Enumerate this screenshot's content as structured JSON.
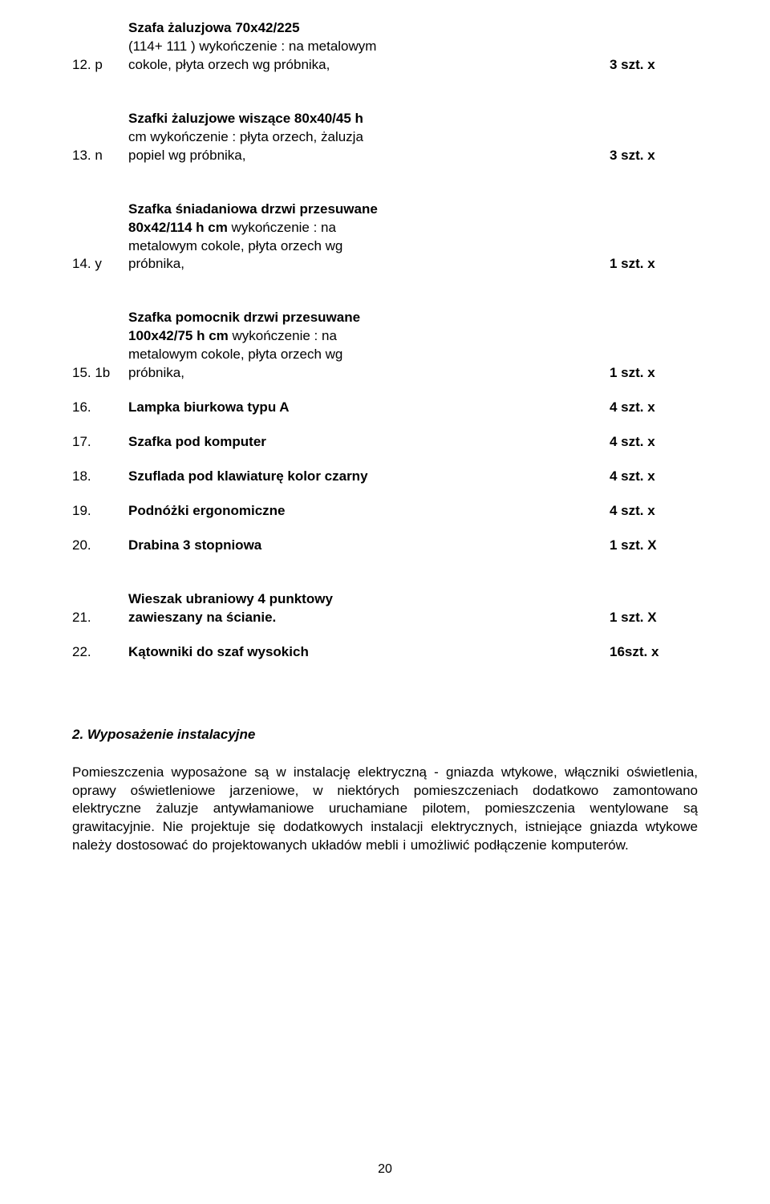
{
  "items": [
    {
      "num": "12. p",
      "desc_lines": [
        {
          "text": "Szafa żaluzjowa  70x42/225",
          "bold": true
        },
        {
          "text": "(114+ 111 ) wykończenie : na metalowym",
          "bold": false
        },
        {
          "text": "cokole, płyta orzech wg próbnika,",
          "bold": false
        }
      ],
      "qty": "3 szt. x",
      "gap": false
    },
    {
      "num": "13. n",
      "desc_lines": [
        {
          "text": "Szafki żaluzjowe wiszące 80x40/45 h",
          "bold": true
        },
        {
          "text": "cm  wykończenie : płyta orzech, żaluzja",
          "bold": false
        },
        {
          "text": "popiel  wg próbnika,",
          "bold": false
        }
      ],
      "qty": "3 szt. x",
      "gap": true
    },
    {
      "num": "14. y",
      "desc_lines": [
        {
          "text": "Szafka  śniadaniowa drzwi przesuwane",
          "bold": true
        },
        {
          "text": "80x42/114 h cm",
          "bold_inline": true,
          "text_cont": " wykończenie : na"
        },
        {
          "text": "metalowym cokole, płyta orzech wg",
          "bold": false
        },
        {
          "text": "próbnika,",
          "bold": false
        }
      ],
      "qty": "1 szt. x",
      "gap": true
    },
    {
      "num": "15. 1b",
      "desc_lines": [
        {
          "text": "Szafka  pomocnik drzwi przesuwane",
          "bold": true
        },
        {
          "text": "100x42/75 h cm",
          "bold_inline": true,
          "text_cont": " wykończenie : na"
        },
        {
          "text": "metalowym cokole, płyta orzech wg",
          "bold": false
        },
        {
          "text": "próbnika,",
          "bold": false
        }
      ],
      "qty": "1 szt. x",
      "gap": true
    },
    {
      "num": "16.",
      "desc_lines": [
        {
          "text": "Lampka biurkowa typu A",
          "bold": true
        }
      ],
      "qty": "4 szt. x",
      "gap": false,
      "gap_sm": true
    },
    {
      "num": "17.",
      "desc_lines": [
        {
          "text": "Szafka pod komputer",
          "bold": true
        }
      ],
      "qty": "4 szt. x",
      "gap": false,
      "gap_sm": true
    },
    {
      "num": "18.",
      "desc_lines": [
        {
          "text": "Szuflada pod klawiaturę kolor czarny",
          "bold": true
        }
      ],
      "qty": "4 szt. x",
      "gap": false,
      "gap_sm": true
    },
    {
      "num": "19.",
      "desc_lines": [
        {
          "text": "Podnóżki ergonomiczne",
          "bold": true
        }
      ],
      "qty": "4 szt. x",
      "gap": false,
      "gap_sm": true
    },
    {
      "num": "20.",
      "desc_lines": [
        {
          "text": "Drabina 3 stopniowa",
          "bold": true
        }
      ],
      "qty": "1 szt. X",
      "gap": false,
      "gap_sm": true
    },
    {
      "num": "21.",
      "desc_lines": [
        {
          "text": "Wieszak ubraniowy 4 punktowy",
          "bold": true
        },
        {
          "text": "zawieszany na ścianie.",
          "bold": true
        }
      ],
      "qty": "1 szt. X",
      "gap": true
    },
    {
      "num": "22.",
      "desc_lines": [
        {
          "text": "Kątowniki do szaf wysokich",
          "bold": true
        }
      ],
      "qty": "16szt. x",
      "gap": false,
      "gap_sm": true
    }
  ],
  "section": {
    "title": "2. Wyposażenie instalacyjne",
    "body": "Pomieszczenia wyposażone są w instalację elektryczną  - gniazda wtykowe, włączniki oświetlenia, oprawy oświetleniowe jarzeniowe, w niektórych pomieszczeniach dodatkowo zamontowano elektryczne żaluzje antywłamaniowe uruchamiane pilotem,  pomieszczenia wentylowane są grawitacyjnie. Nie projektuje się dodatkowych instalacji elektrycznych, istniejące gniazda wtykowe należy dostosować do  projektowanych układów mebli i umożliwić podłączenie komputerów."
  },
  "page_number": "20"
}
